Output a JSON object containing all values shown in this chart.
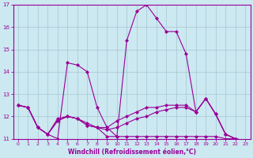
{
  "xlabel": "Windchill (Refroidissement éolien,°C)",
  "bg_color": "#cce8f0",
  "line_color": "#990099",
  "xlim": [
    -0.5,
    23.5
  ],
  "ylim": [
    11,
    17
  ],
  "yticks": [
    11,
    12,
    13,
    14,
    15,
    16,
    17
  ],
  "xticks": [
    0,
    1,
    2,
    3,
    4,
    5,
    6,
    7,
    8,
    9,
    10,
    11,
    12,
    13,
    14,
    15,
    16,
    17,
    18,
    19,
    20,
    21,
    22,
    23
  ],
  "series": [
    [
      12.5,
      12.4,
      11.5,
      11.2,
      11.0,
      14.4,
      14.3,
      14.0,
      12.4,
      11.5,
      11.1,
      15.4,
      16.7,
      17.0,
      16.4,
      15.8,
      15.8,
      14.8,
      12.2,
      12.8,
      12.1,
      11.2,
      11.0,
      10.9
    ],
    [
      12.5,
      12.4,
      11.5,
      11.2,
      11.9,
      12.0,
      11.9,
      11.7,
      11.5,
      11.1,
      11.1,
      11.1,
      11.1,
      11.1,
      11.1,
      11.1,
      11.1,
      11.1,
      11.1,
      11.1,
      11.1,
      11.0,
      11.0,
      10.9
    ],
    [
      12.5,
      12.4,
      11.5,
      11.2,
      11.8,
      12.0,
      11.9,
      11.6,
      11.5,
      11.4,
      11.5,
      11.7,
      11.9,
      12.0,
      12.2,
      12.3,
      12.4,
      12.4,
      12.2,
      12.8,
      12.1,
      11.2,
      11.0,
      10.9
    ],
    [
      12.5,
      12.4,
      11.5,
      11.2,
      11.8,
      12.0,
      11.9,
      11.6,
      11.5,
      11.5,
      11.8,
      12.0,
      12.2,
      12.4,
      12.4,
      12.5,
      12.5,
      12.5,
      12.2,
      12.8,
      12.1,
      11.2,
      11.0,
      10.9
    ]
  ]
}
